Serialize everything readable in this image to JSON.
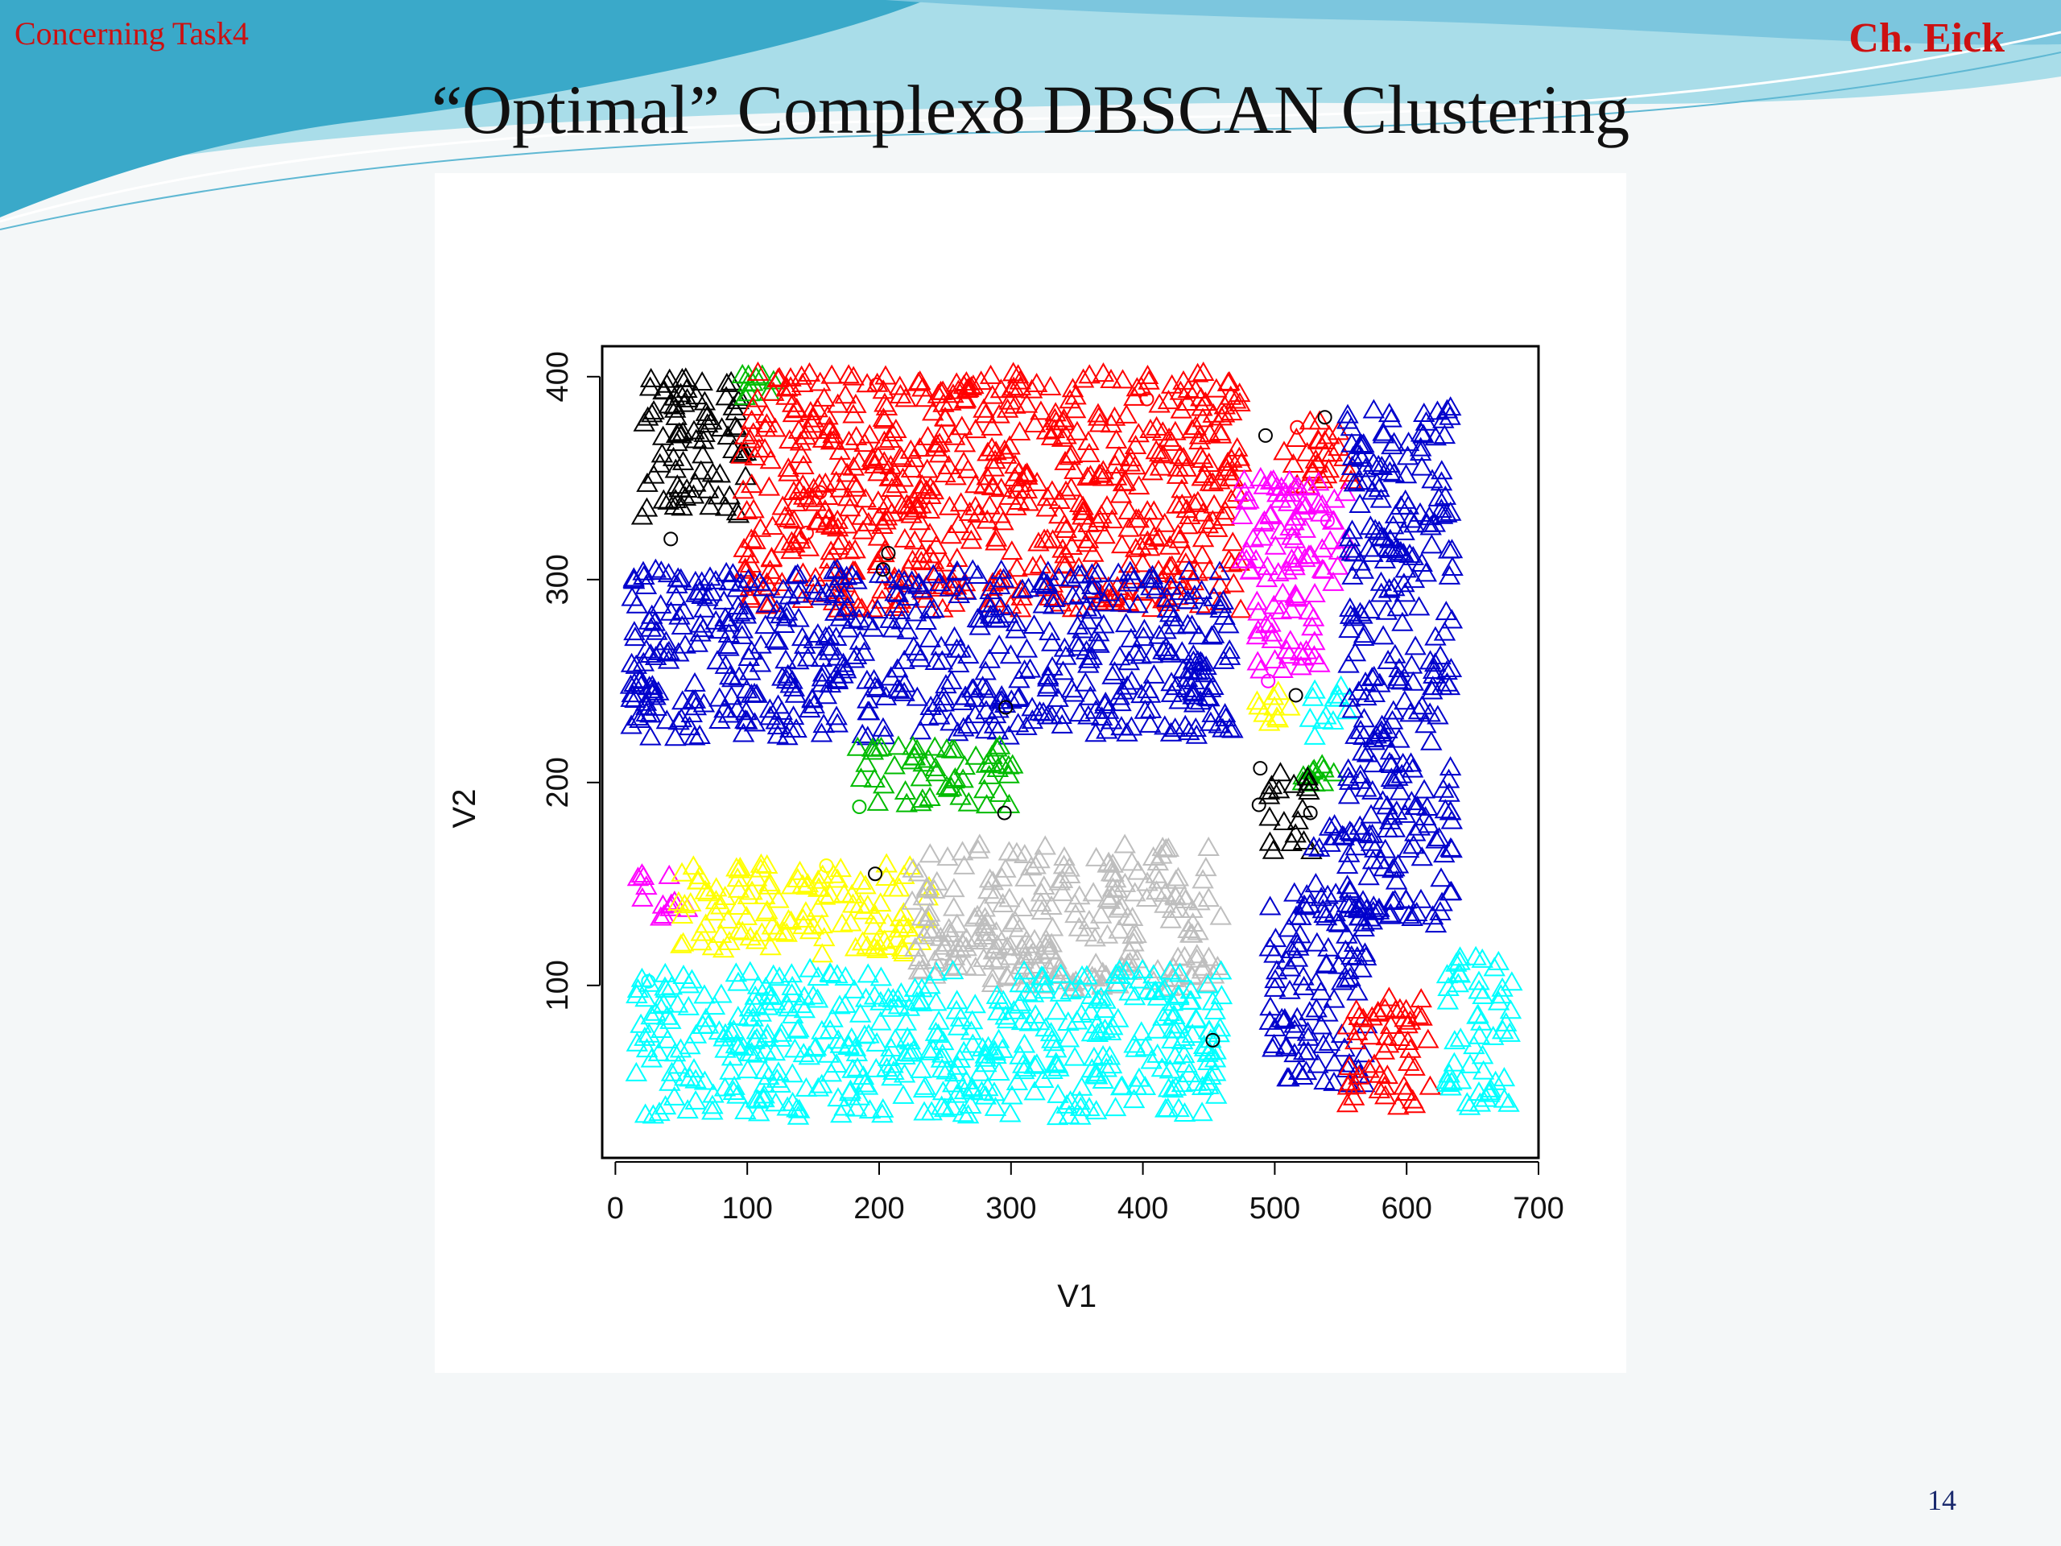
{
  "slide": {
    "header_left": "Concerning Task4",
    "header_right": "Ch. Eick",
    "title": "“Optimal” Complex8 DBSCAN Clustering",
    "page_number": "14",
    "theme_colors": {
      "wave_dark": "#3aa9c9",
      "wave_light": "#a9dde9",
      "background": "#f4f7f8",
      "header_text": "#cc1111"
    }
  },
  "chart_data": {
    "type": "scatter",
    "title": "",
    "xlabel": "V1",
    "ylabel": "V2",
    "xlim": [
      -10,
      700
    ],
    "ylim": [
      15,
      415
    ],
    "x_ticks": [
      0,
      100,
      200,
      300,
      400,
      500,
      600,
      700
    ],
    "y_ticks": [
      100,
      200,
      300,
      400
    ],
    "legend": "none",
    "grid": false,
    "marker_clustered": "triangle",
    "marker_noise": "circle",
    "clusters": [
      {
        "color": "#000000",
        "x": [
          20,
          100
        ],
        "y": [
          325,
          400
        ]
      },
      {
        "color": "#00bb00",
        "x": [
          95,
          120
        ],
        "y": [
          390,
          402
        ]
      },
      {
        "color": "#ff0000",
        "x": [
          95,
          475
        ],
        "y": [
          285,
          402
        ]
      },
      {
        "color": "#ff0000",
        "x": [
          505,
          560
        ],
        "y": [
          345,
          378
        ]
      },
      {
        "color": "#0000cc",
        "x": [
          10,
          470
        ],
        "y": [
          222,
          305
        ]
      },
      {
        "color": "#00bb00",
        "x": [
          180,
          310
        ],
        "y": [
          188,
          218
        ]
      },
      {
        "color": "#ff00ff",
        "x": [
          15,
          55
        ],
        "y": [
          133,
          155
        ]
      },
      {
        "color": "#ffff00",
        "x": [
          45,
          240
        ],
        "y": [
          115,
          160
        ]
      },
      {
        "color": "#bebebe",
        "x": [
          225,
          460
        ],
        "y": [
          98,
          170
        ]
      },
      {
        "color": "#00ffff",
        "x": [
          15,
          460
        ],
        "y": [
          35,
          108
        ]
      },
      {
        "color": "#ff00ff",
        "x": [
          475,
          555
        ],
        "y": [
          280,
          350
        ]
      },
      {
        "color": "#ff00ff",
        "x": [
          480,
          535
        ],
        "y": [
          255,
          285
        ]
      },
      {
        "color": "#ffff00",
        "x": [
          478,
          515
        ],
        "y": [
          228,
          245
        ]
      },
      {
        "color": "#00ffff",
        "x": [
          525,
          555
        ],
        "y": [
          220,
          248
        ]
      },
      {
        "color": "#00bb00",
        "x": [
          520,
          545
        ],
        "y": [
          198,
          210
        ]
      },
      {
        "color": "#000000",
        "x": [
          495,
          530
        ],
        "y": [
          165,
          205
        ]
      },
      {
        "color": "#0000cc",
        "x": [
          555,
          635
        ],
        "y": [
          130,
          385
        ]
      },
      {
        "color": "#0000cc",
        "x": [
          495,
          570
        ],
        "y": [
          50,
          150
        ]
      },
      {
        "color": "#0000cc",
        "x": [
          525,
          560
        ],
        "y": [
          165,
          180
        ]
      },
      {
        "color": "#ff0000",
        "x": [
          555,
          620
        ],
        "y": [
          40,
          95
        ]
      },
      {
        "color": "#00ffff",
        "x": [
          630,
          680
        ],
        "y": [
          40,
          115
        ]
      }
    ],
    "noise_points": [
      {
        "x": 42,
        "y": 320,
        "color": "#000000"
      },
      {
        "x": 207,
        "y": 313,
        "color": "#000000"
      },
      {
        "x": 203,
        "y": 305,
        "color": "#000000"
      },
      {
        "x": 296,
        "y": 237,
        "color": "#000000"
      },
      {
        "x": 295,
        "y": 185,
        "color": "#000000"
      },
      {
        "x": 197,
        "y": 155,
        "color": "#000000"
      },
      {
        "x": 453,
        "y": 73,
        "color": "#000000"
      },
      {
        "x": 493,
        "y": 371,
        "color": "#000000"
      },
      {
        "x": 538,
        "y": 380,
        "color": "#000000"
      },
      {
        "x": 516,
        "y": 243,
        "color": "#000000"
      },
      {
        "x": 489,
        "y": 207,
        "color": "#000000"
      },
      {
        "x": 488,
        "y": 189,
        "color": "#000000"
      },
      {
        "x": 527,
        "y": 185,
        "color": "#000000"
      },
      {
        "x": 403,
        "y": 389,
        "color": "#ff0000"
      },
      {
        "x": 198,
        "y": 396,
        "color": "#ff0000"
      },
      {
        "x": 155,
        "y": 343,
        "color": "#ff0000"
      },
      {
        "x": 145,
        "y": 323,
        "color": "#ff0000"
      },
      {
        "x": 517,
        "y": 375,
        "color": "#ff0000"
      },
      {
        "x": 540,
        "y": 329,
        "color": "#ff00ff"
      },
      {
        "x": 495,
        "y": 250,
        "color": "#ff00ff"
      },
      {
        "x": 160,
        "y": 159,
        "color": "#ffff00"
      },
      {
        "x": 247,
        "y": 110,
        "color": "#bebebe"
      },
      {
        "x": 363,
        "y": 296,
        "color": "#0000cc"
      },
      {
        "x": 185,
        "y": 188,
        "color": "#00bb00"
      },
      {
        "x": 25,
        "y": 102,
        "color": "#00ffff"
      }
    ]
  }
}
